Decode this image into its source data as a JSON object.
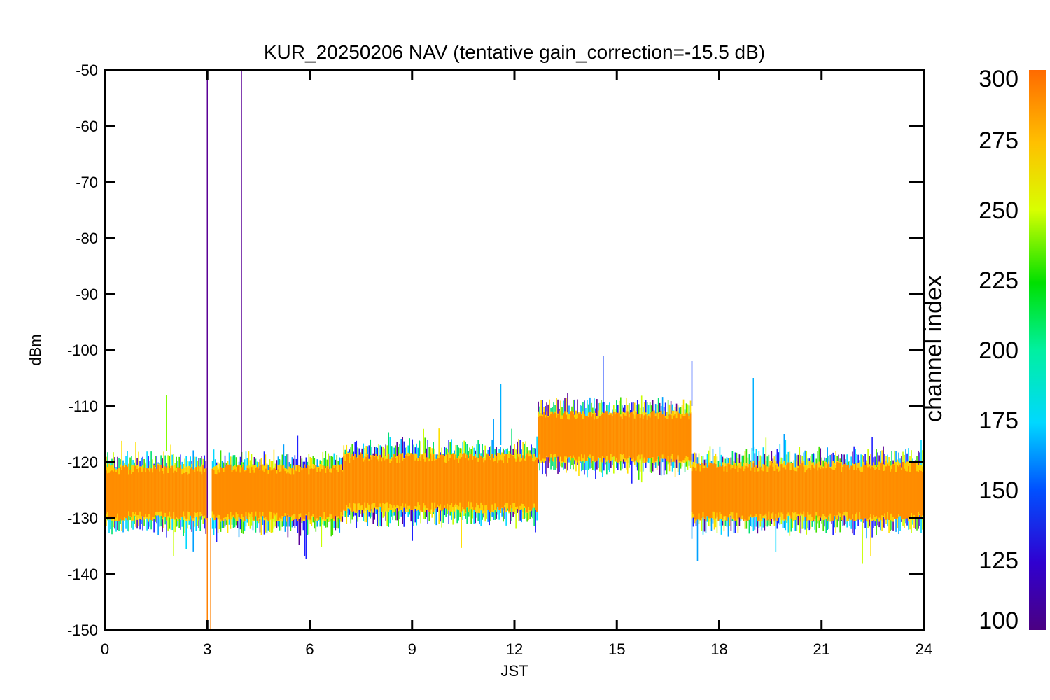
{
  "chart_data": {
    "type": "line",
    "title": "KUR_20250206 NAV (tentative gain_correction=-15.5 dB)",
    "xlabel": "JST",
    "ylabel": "dBm",
    "xlim": [
      0,
      24
    ],
    "ylim": [
      -150,
      -50
    ],
    "xticks": [
      "0",
      "3",
      "6",
      "9",
      "12",
      "15",
      "18",
      "21",
      "24"
    ],
    "yticks": [
      "-50",
      "-60",
      "-70",
      "-80",
      "-90",
      "-100",
      "-110",
      "-120",
      "-130",
      "-140",
      "-150"
    ],
    "grid": false,
    "colorbar": {
      "label": "channel index",
      "range": [
        100,
        300
      ],
      "ticks": [
        "100",
        "125",
        "150",
        "175",
        "200",
        "225",
        "250",
        "275",
        "300"
      ],
      "colormap": "rainbow"
    },
    "series": [
      {
        "channel_range": [
          100,
          300
        ],
        "segments": [
          {
            "x_start": 0.0,
            "x_end": 3.0,
            "median": -125.5,
            "band_low": -131.5,
            "band_high": -119.5,
            "min": -137,
            "max": -115
          },
          {
            "x_start": 3.15,
            "x_end": 7.0,
            "median": -125.5,
            "band_low": -131.5,
            "band_high": -119.5,
            "min": -137,
            "max": -116
          },
          {
            "x_start": 7.0,
            "x_end": 12.7,
            "median": -123.5,
            "band_low": -130.0,
            "band_high": -117.5,
            "min": -135,
            "max": -113
          },
          {
            "x_start": 12.7,
            "x_end": 17.2,
            "median": -115.5,
            "band_low": -121.0,
            "band_high": -110.0,
            "min": -126,
            "max": -107
          },
          {
            "x_start": 17.2,
            "x_end": 24.0,
            "median": -125.5,
            "band_low": -131.5,
            "band_high": -119.0,
            "min": -137,
            "max": -114
          }
        ],
        "spikes": [
          {
            "x": 3.0,
            "y_low": -150,
            "y_high": -50,
            "color": "#5a0096"
          },
          {
            "x": 4.0,
            "y_low": -120,
            "y_high": -50,
            "color": "#5a0096"
          },
          {
            "x": 3.0,
            "y_low": -150,
            "y_high": -130,
            "color": "#ff8000"
          },
          {
            "x": 3.1,
            "y_low": -150,
            "y_high": -130,
            "color": "#ff8000"
          },
          {
            "x": 14.6,
            "y_low": -110,
            "y_high": -101,
            "color": "#0030ff"
          },
          {
            "x": 17.2,
            "y_low": -110,
            "y_high": -102,
            "color": "#0030ff"
          },
          {
            "x": 19.0,
            "y_low": -118,
            "y_high": -105,
            "color": "#00b0ff"
          },
          {
            "x": 11.6,
            "y_low": -117,
            "y_high": -106,
            "color": "#00b0ff"
          },
          {
            "x": 1.8,
            "y_low": -118,
            "y_high": -108,
            "color": "#80ff00"
          }
        ]
      }
    ]
  },
  "colors": {
    "background": "#ffffff",
    "axis": "#000000",
    "dominant_trace": "#ff8c00"
  }
}
